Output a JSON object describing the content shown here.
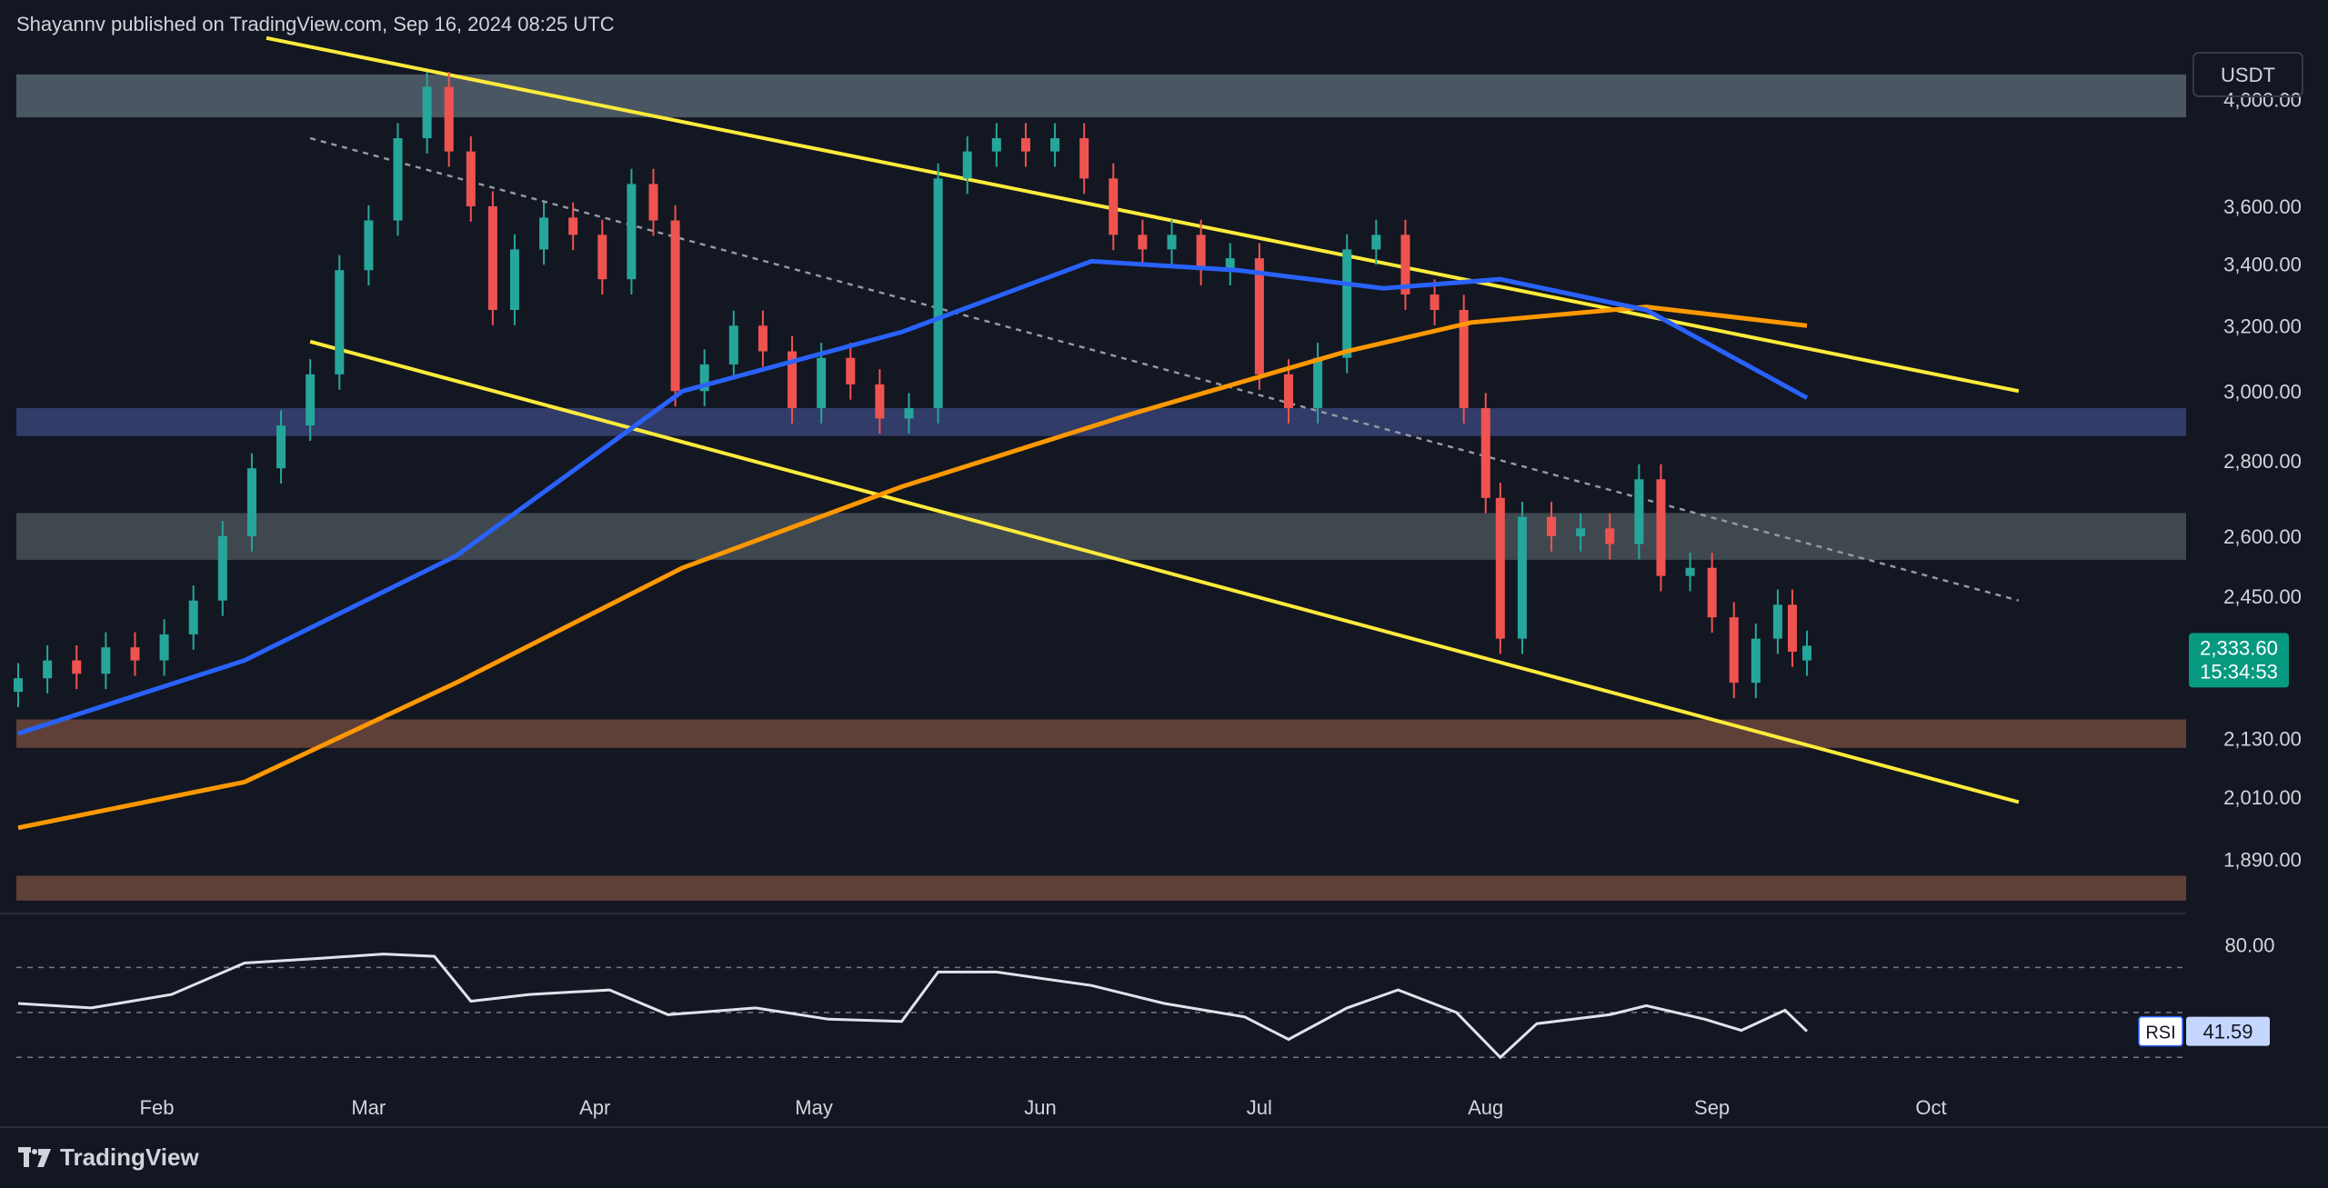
{
  "header": {
    "attribution": "Shayannv published on TradingView.com, Sep 16, 2024 08:25 UTC"
  },
  "footer": {
    "brand": "TradingView"
  },
  "price_panel": {
    "currency_badge": "USDT",
    "price_ticks": [
      "4,000.00",
      "3,600.00",
      "3,400.00",
      "3,200.00",
      "3,000.00",
      "2,800.00",
      "2,600.00",
      "2,450.00",
      "2,130.00",
      "2,010.00",
      "1,890.00"
    ],
    "current_price": "2,333.60",
    "countdown": "15:34:53",
    "colors": {
      "up": "#26a69a",
      "down": "#ef5350",
      "ma_blue": "#2962ff",
      "ma_orange": "#ff9800",
      "trendline": "#ffeb3b",
      "badge": "#089981"
    }
  },
  "rsi_panel": {
    "label": "RSI",
    "value": "41.59",
    "ticks": [
      "80.00"
    ]
  },
  "x_axis": {
    "ticks": [
      "Feb",
      "Mar",
      "Apr",
      "May",
      "Jun",
      "Jul",
      "Aug",
      "Sep",
      "Oct"
    ]
  },
  "chart_data": {
    "type": "candlestick",
    "symbol_quote": "USDT",
    "x_range": [
      "2024-01-15",
      "2024-10-20"
    ],
    "y_scale": "log",
    "ylim": [
      1800,
      4200
    ],
    "grid": false,
    "legend": "none",
    "candles": [
      {
        "date": "2024-01-15",
        "o": 2230,
        "c": 2260
      },
      {
        "date": "2024-01-19",
        "o": 2260,
        "c": 2300
      },
      {
        "date": "2024-01-23",
        "o": 2300,
        "c": 2270
      },
      {
        "date": "2024-01-27",
        "o": 2270,
        "c": 2330
      },
      {
        "date": "2024-01-31",
        "o": 2330,
        "c": 2300
      },
      {
        "date": "2024-02-04",
        "o": 2300,
        "c": 2360
      },
      {
        "date": "2024-02-08",
        "o": 2360,
        "c": 2440
      },
      {
        "date": "2024-02-12",
        "o": 2440,
        "c": 2600
      },
      {
        "date": "2024-02-16",
        "o": 2600,
        "c": 2780
      },
      {
        "date": "2024-02-20",
        "o": 2780,
        "c": 2900
      },
      {
        "date": "2024-02-24",
        "o": 2900,
        "c": 3050
      },
      {
        "date": "2024-02-28",
        "o": 3050,
        "c": 3380
      },
      {
        "date": "2024-03-03",
        "o": 3380,
        "c": 3550
      },
      {
        "date": "2024-03-07",
        "o": 3550,
        "c": 3850
      },
      {
        "date": "2024-03-11",
        "o": 3850,
        "c": 4050
      },
      {
        "date": "2024-03-14",
        "o": 4050,
        "c": 3800
      },
      {
        "date": "2024-03-17",
        "o": 3800,
        "c": 3600
      },
      {
        "date": "2024-03-20",
        "o": 3600,
        "c": 3250
      },
      {
        "date": "2024-03-23",
        "o": 3250,
        "c": 3450
      },
      {
        "date": "2024-03-27",
        "o": 3450,
        "c": 3560
      },
      {
        "date": "2024-03-31",
        "o": 3560,
        "c": 3500
      },
      {
        "date": "2024-04-04",
        "o": 3500,
        "c": 3350
      },
      {
        "date": "2024-04-08",
        "o": 3350,
        "c": 3680
      },
      {
        "date": "2024-04-11",
        "o": 3680,
        "c": 3550
      },
      {
        "date": "2024-04-14",
        "o": 3550,
        "c": 3000
      },
      {
        "date": "2024-04-18",
        "o": 3000,
        "c": 3080
      },
      {
        "date": "2024-04-22",
        "o": 3080,
        "c": 3200
      },
      {
        "date": "2024-04-26",
        "o": 3200,
        "c": 3120
      },
      {
        "date": "2024-04-30",
        "o": 3120,
        "c": 2950
      },
      {
        "date": "2024-05-04",
        "o": 2950,
        "c": 3100
      },
      {
        "date": "2024-05-08",
        "o": 3100,
        "c": 3020
      },
      {
        "date": "2024-05-12",
        "o": 3020,
        "c": 2920
      },
      {
        "date": "2024-05-16",
        "o": 2920,
        "c": 2950
      },
      {
        "date": "2024-05-20",
        "o": 2950,
        "c": 3700
      },
      {
        "date": "2024-05-24",
        "o": 3700,
        "c": 3800
      },
      {
        "date": "2024-05-28",
        "o": 3800,
        "c": 3850
      },
      {
        "date": "2024-06-01",
        "o": 3850,
        "c": 3800
      },
      {
        "date": "2024-06-05",
        "o": 3800,
        "c": 3850
      },
      {
        "date": "2024-06-09",
        "o": 3850,
        "c": 3700
      },
      {
        "date": "2024-06-13",
        "o": 3700,
        "c": 3500
      },
      {
        "date": "2024-06-17",
        "o": 3500,
        "c": 3450
      },
      {
        "date": "2024-06-21",
        "o": 3450,
        "c": 3500
      },
      {
        "date": "2024-06-25",
        "o": 3500,
        "c": 3380
      },
      {
        "date": "2024-06-29",
        "o": 3380,
        "c": 3420
      },
      {
        "date": "2024-07-03",
        "o": 3420,
        "c": 3050
      },
      {
        "date": "2024-07-07",
        "o": 3050,
        "c": 2950
      },
      {
        "date": "2024-07-11",
        "o": 2950,
        "c": 3100
      },
      {
        "date": "2024-07-15",
        "o": 3100,
        "c": 3450
      },
      {
        "date": "2024-07-19",
        "o": 3450,
        "c": 3500
      },
      {
        "date": "2024-07-23",
        "o": 3500,
        "c": 3300
      },
      {
        "date": "2024-07-27",
        "o": 3300,
        "c": 3250
      },
      {
        "date": "2024-07-31",
        "o": 3250,
        "c": 2950
      },
      {
        "date": "2024-08-03",
        "o": 2950,
        "c": 2700
      },
      {
        "date": "2024-08-05",
        "o": 2700,
        "c": 2350
      },
      {
        "date": "2024-08-08",
        "o": 2350,
        "c": 2650
      },
      {
        "date": "2024-08-12",
        "o": 2650,
        "c": 2600
      },
      {
        "date": "2024-08-16",
        "o": 2600,
        "c": 2620
      },
      {
        "date": "2024-08-20",
        "o": 2620,
        "c": 2580
      },
      {
        "date": "2024-08-24",
        "o": 2580,
        "c": 2750
      },
      {
        "date": "2024-08-27",
        "o": 2750,
        "c": 2500
      },
      {
        "date": "2024-08-31",
        "o": 2500,
        "c": 2520
      },
      {
        "date": "2024-09-03",
        "o": 2520,
        "c": 2400
      },
      {
        "date": "2024-09-06",
        "o": 2400,
        "c": 2250
      },
      {
        "date": "2024-09-09",
        "o": 2250,
        "c": 2350
      },
      {
        "date": "2024-09-12",
        "o": 2350,
        "c": 2430
      },
      {
        "date": "2024-09-14",
        "o": 2430,
        "c": 2320
      },
      {
        "date": "2024-09-16",
        "o": 2300,
        "c": 2333.6
      }
    ],
    "sma_100": [
      {
        "date": "2024-01-15",
        "v": 2140
      },
      {
        "date": "2024-02-15",
        "v": 2300
      },
      {
        "date": "2024-03-15",
        "v": 2550
      },
      {
        "date": "2024-04-15",
        "v": 3000
      },
      {
        "date": "2024-05-15",
        "v": 3180
      },
      {
        "date": "2024-06-10",
        "v": 3410
      },
      {
        "date": "2024-06-30",
        "v": 3380
      },
      {
        "date": "2024-07-20",
        "v": 3320
      },
      {
        "date": "2024-08-05",
        "v": 3350
      },
      {
        "date": "2024-08-25",
        "v": 3250
      },
      {
        "date": "2024-09-16",
        "v": 2980
      }
    ],
    "sma_200": [
      {
        "date": "2024-01-15",
        "v": 1950
      },
      {
        "date": "2024-02-15",
        "v": 2040
      },
      {
        "date": "2024-03-15",
        "v": 2250
      },
      {
        "date": "2024-04-15",
        "v": 2520
      },
      {
        "date": "2024-05-15",
        "v": 2730
      },
      {
        "date": "2024-06-15",
        "v": 2930
      },
      {
        "date": "2024-07-15",
        "v": 3120
      },
      {
        "date": "2024-08-01",
        "v": 3210
      },
      {
        "date": "2024-08-25",
        "v": 3260
      },
      {
        "date": "2024-09-16",
        "v": 3200
      }
    ],
    "trendlines": [
      {
        "style": "solid",
        "from": {
          "date": "2024-02-18",
          "price": 4250
        },
        "to": {
          "date": "2024-10-15",
          "price": 3000
        }
      },
      {
        "style": "solid",
        "from": {
          "date": "2024-02-24",
          "price": 3150
        },
        "to": {
          "date": "2024-10-15",
          "price": 2000
        }
      },
      {
        "style": "dashed",
        "from": {
          "date": "2024-02-24",
          "price": 3850
        },
        "to": {
          "date": "2024-10-15",
          "price": 2440
        }
      }
    ],
    "zones": [
      {
        "low": 3930,
        "high": 4100,
        "color": "#5d6e78"
      },
      {
        "low": 2870,
        "high": 2950,
        "color": "#3c4a82"
      },
      {
        "low": 2540,
        "high": 2660,
        "color": "#50595f"
      },
      {
        "low": 2110,
        "high": 2170,
        "color": "#7a4f40"
      },
      {
        "low": 1815,
        "high": 1860,
        "color": "#7a4f40"
      }
    ],
    "rsi": {
      "overbought": 70,
      "midline": 50,
      "oversold": 30,
      "ylim": [
        20,
        90
      ],
      "points": [
        {
          "date": "2024-01-15",
          "v": 54
        },
        {
          "date": "2024-01-25",
          "v": 52
        },
        {
          "date": "2024-02-05",
          "v": 58
        },
        {
          "date": "2024-02-15",
          "v": 72
        },
        {
          "date": "2024-02-25",
          "v": 74
        },
        {
          "date": "2024-03-05",
          "v": 76
        },
        {
          "date": "2024-03-12",
          "v": 75
        },
        {
          "date": "2024-03-17",
          "v": 55
        },
        {
          "date": "2024-03-25",
          "v": 58
        },
        {
          "date": "2024-04-05",
          "v": 60
        },
        {
          "date": "2024-04-13",
          "v": 49
        },
        {
          "date": "2024-04-25",
          "v": 52
        },
        {
          "date": "2024-05-05",
          "v": 47
        },
        {
          "date": "2024-05-15",
          "v": 46
        },
        {
          "date": "2024-05-20",
          "v": 68
        },
        {
          "date": "2024-05-28",
          "v": 68
        },
        {
          "date": "2024-06-10",
          "v": 62
        },
        {
          "date": "2024-06-20",
          "v": 54
        },
        {
          "date": "2024-07-01",
          "v": 48
        },
        {
          "date": "2024-07-07",
          "v": 38
        },
        {
          "date": "2024-07-15",
          "v": 52
        },
        {
          "date": "2024-07-22",
          "v": 60
        },
        {
          "date": "2024-07-30",
          "v": 50
        },
        {
          "date": "2024-08-05",
          "v": 30
        },
        {
          "date": "2024-08-10",
          "v": 45
        },
        {
          "date": "2024-08-20",
          "v": 49
        },
        {
          "date": "2024-08-25",
          "v": 53
        },
        {
          "date": "2024-09-02",
          "v": 47
        },
        {
          "date": "2024-09-07",
          "v": 42
        },
        {
          "date": "2024-09-13",
          "v": 51
        },
        {
          "date": "2024-09-16",
          "v": 41.59
        }
      ]
    }
  }
}
